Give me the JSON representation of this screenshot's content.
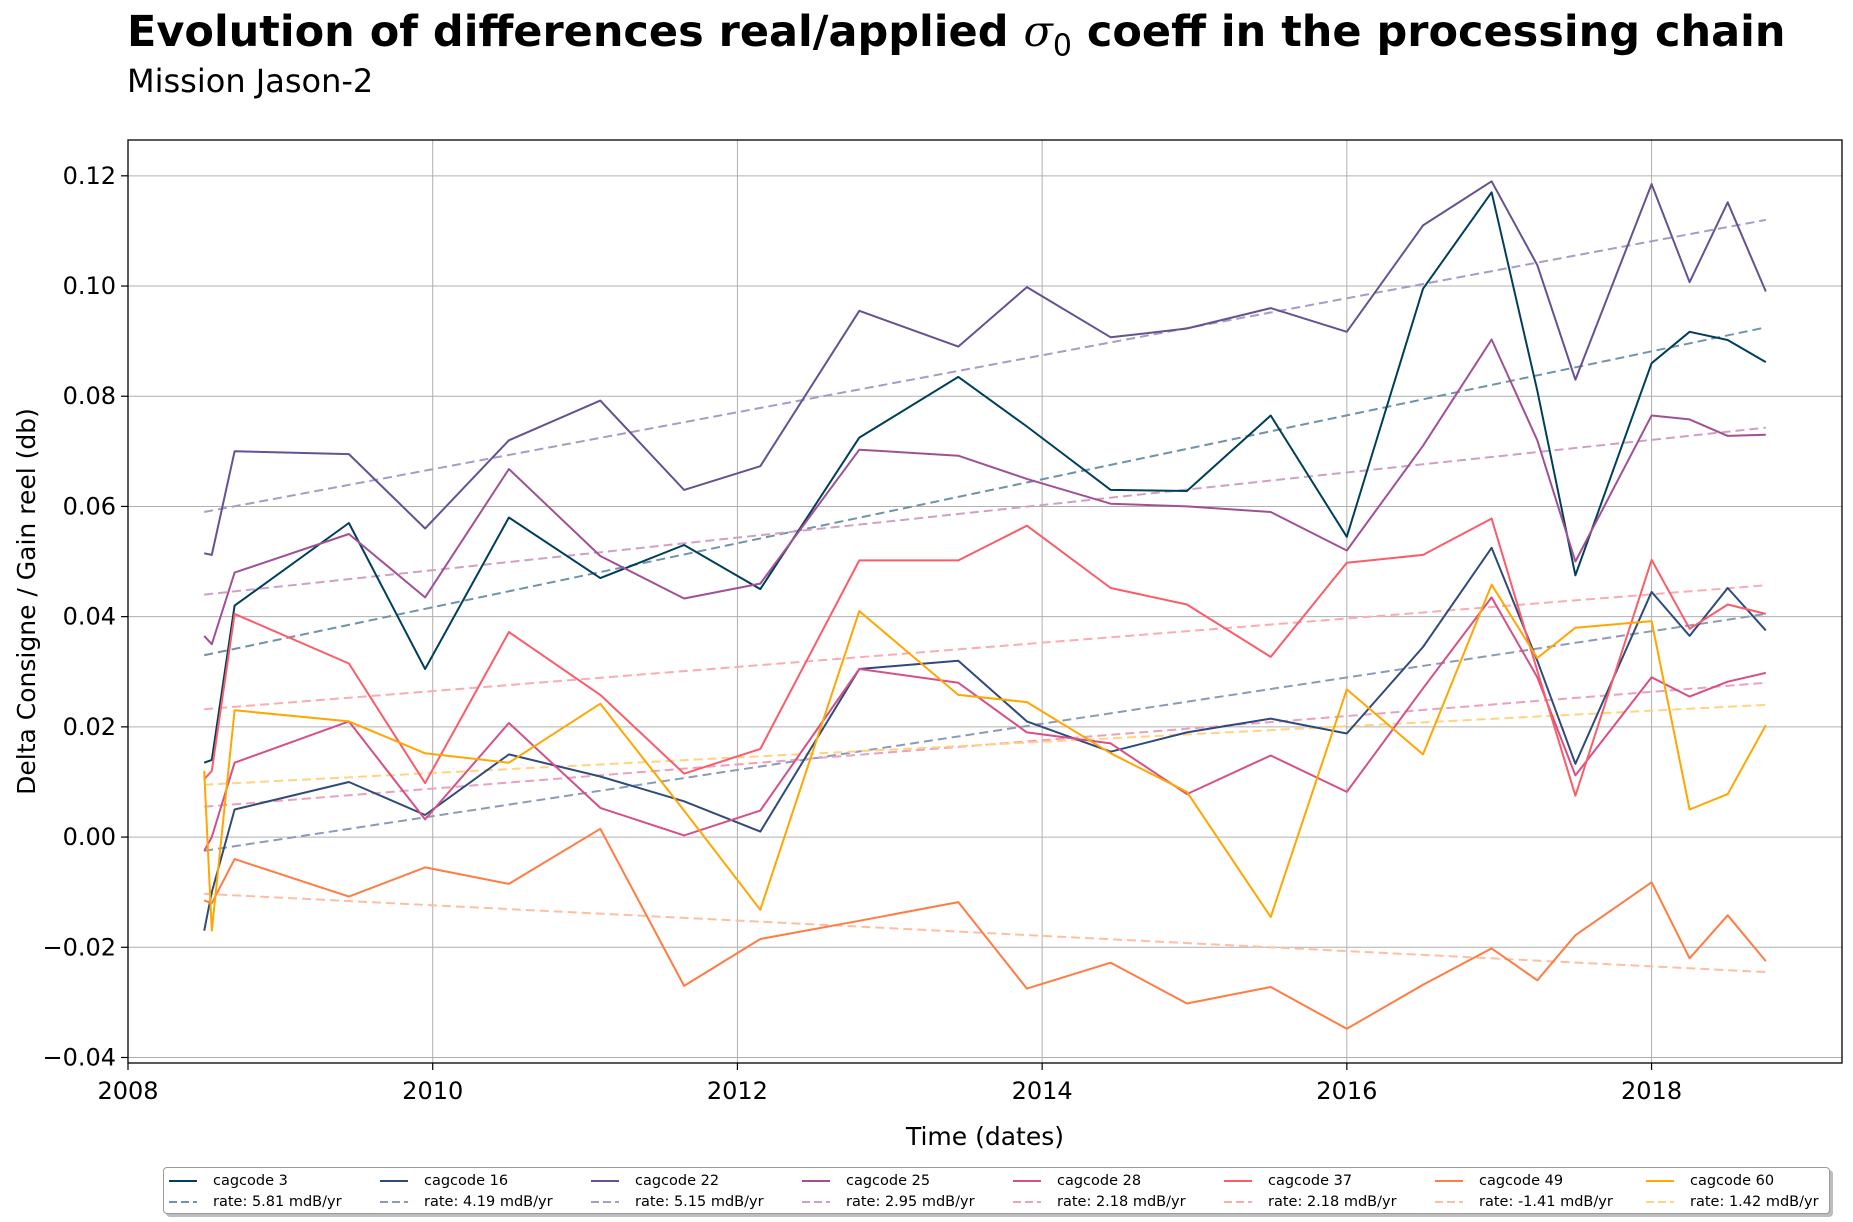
{
  "title": {
    "prefix": "Evolution of differences real/applied ",
    "sigma": "σ",
    "sigma_sub": "0",
    "suffix": " coeff in the processing chain"
  },
  "subtitle": "Mission Jason-2",
  "chart_data": {
    "type": "line",
    "xlabel": "Time (dates)",
    "ylabel": "Delta Consigne / Gain reel (db)",
    "xlim": [
      2008.0,
      2019.25
    ],
    "ylim": [
      -0.041,
      0.1265
    ],
    "x_ticks": [
      2008,
      2010,
      2012,
      2014,
      2016,
      2018
    ],
    "y_ticks": [
      -0.04,
      -0.02,
      0.0,
      0.02,
      0.04,
      0.06,
      0.08,
      0.1,
      0.12
    ],
    "y_tick_labels": [
      "−0.04",
      "−0.02",
      "0.00",
      "0.02",
      "0.04",
      "0.06",
      "0.08",
      "0.10",
      "0.12"
    ],
    "grid": true,
    "legend_position": "bottom-center",
    "x": [
      2008.5,
      2008.55,
      2008.7,
      2009.45,
      2009.95,
      2010.5,
      2011.1,
      2011.65,
      2012.15,
      2012.8,
      2013.45,
      2013.9,
      2014.45,
      2014.95,
      2015.5,
      2016.0,
      2016.5,
      2016.95,
      2017.25,
      2017.5,
      2018.0,
      2018.25,
      2018.5,
      2018.75
    ],
    "series": [
      {
        "name": "cagcode 3",
        "color": "#003f5c",
        "trend_color": "#6f93a8",
        "rate_label": "rate: 5.81 mdB/yr",
        "trend": [
          0.033,
          0.0925
        ],
        "values": [
          0.0135,
          0.014,
          0.042,
          0.057,
          0.0305,
          0.058,
          0.047,
          0.053,
          0.045,
          0.0725,
          0.0835,
          0.0745,
          0.063,
          0.0628,
          0.0765,
          0.0545,
          0.0995,
          0.117,
          0.081,
          0.0475,
          0.086,
          0.0917,
          0.0902,
          0.0862
        ]
      },
      {
        "name": "cagcode 16",
        "color": "#2f4b7c",
        "trend_color": "#8a9bb8",
        "rate_label": "rate: 4.19 mdB/yr",
        "trend": [
          -0.0025,
          0.0405
        ],
        "values": [
          -0.017,
          -0.01,
          0.005,
          0.01,
          0.004,
          0.015,
          0.011,
          0.0065,
          0.001,
          0.0305,
          0.032,
          0.021,
          0.0155,
          0.019,
          0.0215,
          0.0188,
          0.0345,
          0.0525,
          0.032,
          0.0133,
          0.0445,
          0.0365,
          0.0452,
          0.0375
        ]
      },
      {
        "name": "cagcode 22",
        "color": "#665191",
        "trend_color": "#a89bc4",
        "rate_label": "rate: 5.15 mdB/yr",
        "trend": [
          0.059,
          0.112
        ],
        "values": [
          0.0515,
          0.0512,
          0.07,
          0.0695,
          0.056,
          0.072,
          0.0792,
          0.063,
          0.0673,
          0.0955,
          0.089,
          0.0998,
          0.0907,
          0.0923,
          0.096,
          0.0917,
          0.111,
          0.119,
          0.1038,
          0.083,
          0.1185,
          0.1007,
          0.1152,
          0.099
        ]
      },
      {
        "name": "cagcode 25",
        "color": "#a05195",
        "trend_color": "#cfa0c6",
        "rate_label": "rate: 2.95 mdB/yr",
        "trend": [
          0.044,
          0.0743
        ],
        "values": [
          0.0365,
          0.035,
          0.048,
          0.055,
          0.0435,
          0.0668,
          0.051,
          0.0433,
          0.046,
          0.0703,
          0.0692,
          0.065,
          0.0605,
          0.06,
          0.059,
          0.052,
          0.071,
          0.0903,
          0.072,
          0.05,
          0.0765,
          0.0758,
          0.0728,
          0.073
        ]
      },
      {
        "name": "cagcode 28",
        "color": "#d45087",
        "trend_color": "#eaa0bf",
        "rate_label": "rate: 2.18 mdB/yr",
        "trend": [
          0.0055,
          0.028
        ],
        "values": [
          -0.0025,
          0.0,
          0.0135,
          0.021,
          0.0032,
          0.0207,
          0.0053,
          0.0003,
          0.0048,
          0.0305,
          0.028,
          0.019,
          0.017,
          0.0078,
          0.0148,
          0.0082,
          0.027,
          0.0435,
          0.029,
          0.0112,
          0.029,
          0.0255,
          0.0282,
          0.0298
        ]
      },
      {
        "name": "cagcode 37",
        "color": "#f95d6a",
        "trend_color": "#fbabb2",
        "rate_label": "rate: 2.18 mdB/yr",
        "trend": [
          0.0232,
          0.0457
        ],
        "values": [
          0.0105,
          0.012,
          0.0405,
          0.0315,
          0.0098,
          0.0372,
          0.0258,
          0.0115,
          0.016,
          0.0502,
          0.0502,
          0.0565,
          0.0452,
          0.0422,
          0.0327,
          0.0498,
          0.0512,
          0.0578,
          0.0302,
          0.0075,
          0.0503,
          0.0378,
          0.0422,
          0.0405
        ]
      },
      {
        "name": "cagcode 49",
        "color": "#ff7c43",
        "trend_color": "#ffbea1",
        "rate_label": "rate: -1.41 mdB/yr",
        "trend": [
          -0.0103,
          -0.0245
        ],
        "values": [
          -0.0115,
          -0.012,
          -0.004,
          -0.0108,
          -0.0055,
          -0.0085,
          0.0015,
          -0.027,
          -0.0185,
          -0.0152,
          -0.0118,
          -0.0275,
          -0.0228,
          -0.0302,
          -0.0272,
          -0.0348,
          -0.0268,
          -0.0202,
          -0.026,
          -0.0178,
          -0.0082,
          -0.022,
          -0.0142,
          -0.0225
        ]
      },
      {
        "name": "cagcode 60",
        "color": "#ffa600",
        "trend_color": "#ffd380",
        "rate_label": "rate: 1.42 mdB/yr",
        "trend": [
          0.0095,
          0.024
        ],
        "values": [
          0.012,
          -0.017,
          0.023,
          0.021,
          0.0152,
          0.0135,
          0.0242,
          0.0048,
          -0.0132,
          0.041,
          0.0258,
          0.0245,
          0.0152,
          0.0082,
          -0.0145,
          0.0268,
          0.015,
          0.0458,
          0.0325,
          0.038,
          0.0392,
          0.005,
          0.0078,
          0.0203
        ]
      }
    ]
  }
}
